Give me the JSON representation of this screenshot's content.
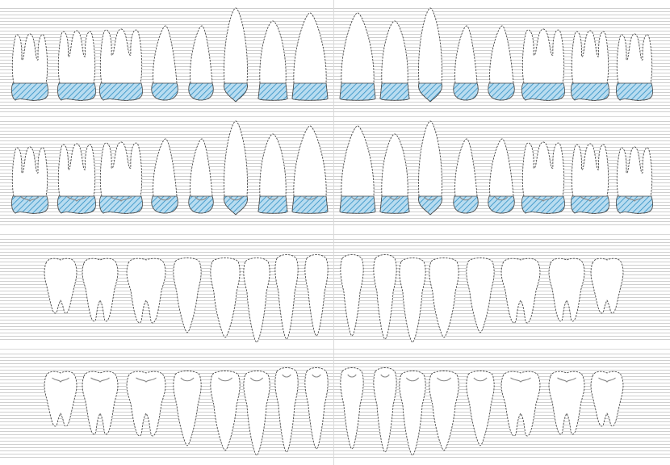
{
  "colors": {
    "background": "#ffffff",
    "grid_line": "#bfbfbf",
    "divider": "#d9d9d9",
    "tooth_outline": "#4a4a4a",
    "crown_fill": "#b8dcf0",
    "crown_hatch": "#2f8fc4",
    "occlusal_mark": "#8a8a8a"
  },
  "chart": {
    "panels": [
      {
        "arch": "upper",
        "view": "buccal",
        "crown_shaded": true,
        "occlusal_marks": false
      },
      {
        "arch": "upper",
        "view": "buccal",
        "crown_shaded": true,
        "occlusal_marks": true
      },
      {
        "arch": "lower",
        "view": "buccal",
        "crown_shaded": false,
        "occlusal_marks": false
      },
      {
        "arch": "lower",
        "view": "buccal",
        "crown_shaded": false,
        "occlusal_marks": true
      }
    ],
    "upper_teeth": [
      "molar",
      "molar",
      "molar",
      "premolar",
      "premolar",
      "canine",
      "incisor-lateral",
      "incisor-central",
      "incisor-central",
      "incisor-lateral",
      "canine",
      "premolar",
      "premolar",
      "molar",
      "molar",
      "molar"
    ],
    "lower_teeth": [
      "molar",
      "molar",
      "molar",
      "premolar",
      "premolar",
      "canine",
      "incisor",
      "incisor",
      "incisor",
      "incisor",
      "canine",
      "premolar",
      "premolar",
      "molar",
      "molar",
      "molar"
    ]
  }
}
